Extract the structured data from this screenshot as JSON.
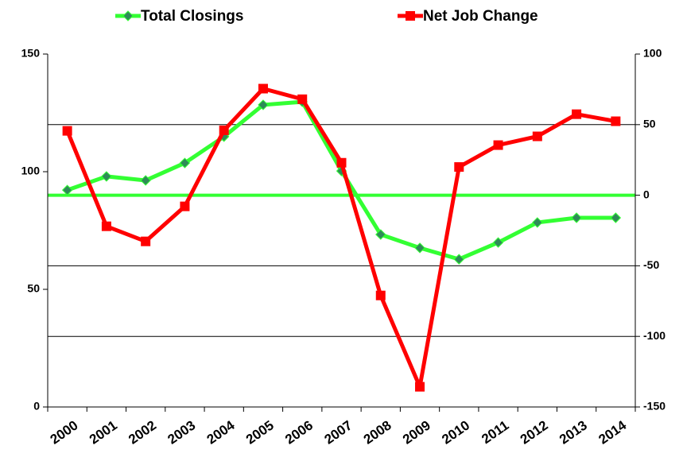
{
  "chart_data": {
    "type": "line",
    "categories": [
      "2000",
      "2001",
      "2002",
      "2003",
      "2004",
      "2005",
      "2006",
      "2007",
      "2008",
      "2009",
      "2010",
      "2011",
      "2012",
      "2013",
      "2014"
    ],
    "series": [
      {
        "name": "Total Closings",
        "color": "#33ff33",
        "marker": "diamond",
        "marker_color": "#2e8b57",
        "values": [
          92.2,
          98,
          96.3,
          103.7,
          114.9,
          128.4,
          129.7,
          100.3,
          73.3,
          67.6,
          62.8,
          69.9,
          78.4,
          80.4,
          80.4
        ]
      },
      {
        "name": "Net Job Change",
        "color": "#ff0000",
        "marker": "square",
        "marker_color": "#ff0000",
        "axis": "y2",
        "values": [
          45.6,
          -22,
          -32.7,
          -7.9,
          46,
          75.5,
          68,
          23,
          -71,
          -135.7,
          20,
          35.5,
          41.7,
          57.4,
          52.4
        ]
      }
    ],
    "ylim": [
      0,
      150
    ],
    "yticks": [
      0,
      50,
      100,
      150
    ],
    "y2lim": [
      -150,
      100
    ],
    "y2ticks": [
      -150,
      -100,
      -50,
      0,
      50,
      100
    ],
    "grid": "y2",
    "zero_line_color": "#33ff33",
    "legend": "top"
  }
}
